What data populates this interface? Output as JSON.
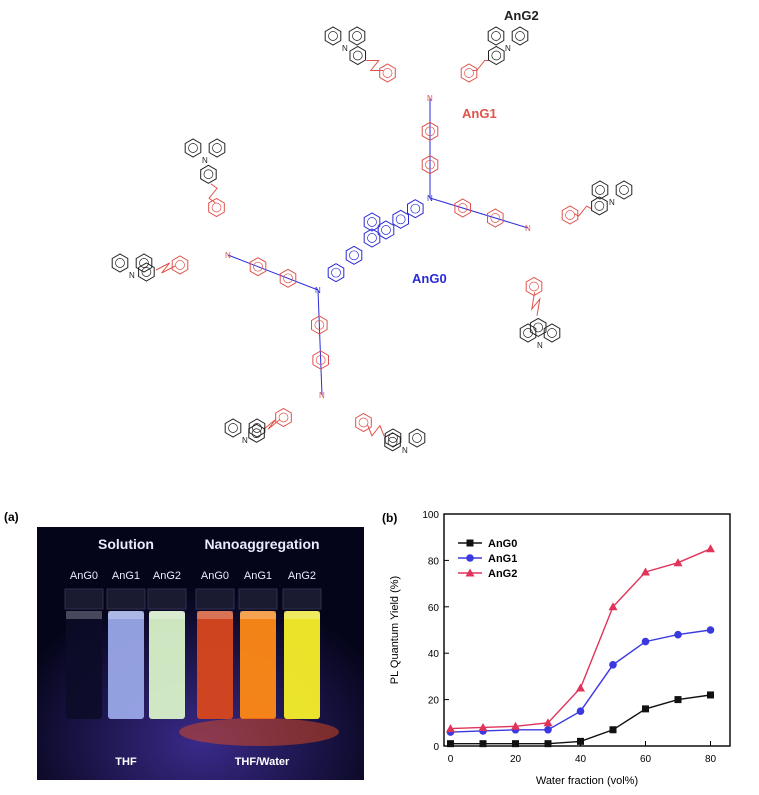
{
  "structure": {
    "labels": {
      "g0": "AnG0",
      "g1": "AnG1",
      "g2": "AnG2"
    },
    "colors": {
      "g0": "#2a2ad8",
      "g1": "#e0524a",
      "g2": "#222222"
    }
  },
  "photo": {
    "panel_label": "(a)",
    "group_solution": "Solution",
    "group_nano": "Nanoaggregation",
    "vial_labels": [
      "AnG0",
      "AnG1",
      "AnG2",
      "AnG0",
      "AnG1",
      "AnG2"
    ],
    "bottom_left": "THF",
    "bottom_right": "THF/Water",
    "vial_colors": [
      "#0c0c28",
      "#9aa8e8",
      "#d8f2c8",
      "#d8481e",
      "#ff8a16",
      "#f7ef2a"
    ]
  },
  "chart_data": {
    "type": "line",
    "panel_label": "(b)",
    "title": "",
    "xlabel": "Water fraction (vol%)",
    "ylabel": "PL Quantum Yield (%)",
    "x": [
      0,
      10,
      20,
      30,
      40,
      50,
      60,
      70,
      80
    ],
    "xlim": [
      -2,
      86
    ],
    "ylim": [
      0,
      100
    ],
    "xticks": [
      0,
      20,
      40,
      60,
      80
    ],
    "yticks": [
      0,
      20,
      40,
      60,
      80,
      100
    ],
    "legend": "top-left",
    "series": [
      {
        "name": "AnG0",
        "color": "#111111",
        "marker": "square",
        "values": [
          1,
          1,
          1,
          1,
          2,
          7,
          16,
          20,
          22
        ]
      },
      {
        "name": "AnG1",
        "color": "#3a3ae0",
        "marker": "circle",
        "values": [
          6,
          6.5,
          7,
          7,
          15,
          35,
          45,
          48,
          50
        ]
      },
      {
        "name": "AnG2",
        "color": "#e0345a",
        "marker": "triangle",
        "values": [
          7.5,
          8,
          8.5,
          10,
          25,
          60,
          75,
          79,
          85
        ]
      }
    ]
  }
}
